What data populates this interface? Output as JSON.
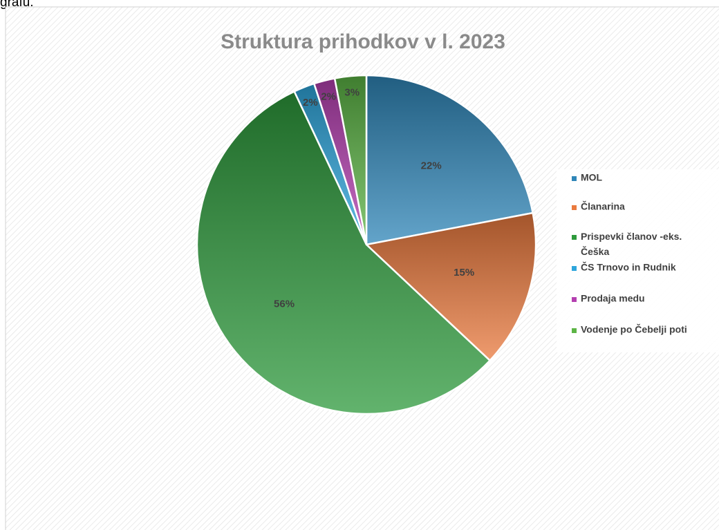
{
  "caption": "grafu.",
  "chart_data": {
    "type": "pie",
    "title": "Struktura prihodkov v l. 2023",
    "categories": [
      "MOL",
      "Članarina",
      "Prispevki članov -eks. Češka",
      "ČS Trnovo in Rudnik",
      "Prodaja medu",
      "Vodenje po Čebelji poti"
    ],
    "values": [
      22,
      15,
      56,
      2,
      2,
      3
    ],
    "value_labels": [
      "22%",
      "15%",
      "56%",
      "2%",
      "2%",
      "3%"
    ],
    "colors": [
      "#2f86b8",
      "#ea7a3e",
      "#2e9a3c",
      "#2ea6dc",
      "#b43fb0",
      "#5cb445"
    ],
    "legend": "right"
  }
}
